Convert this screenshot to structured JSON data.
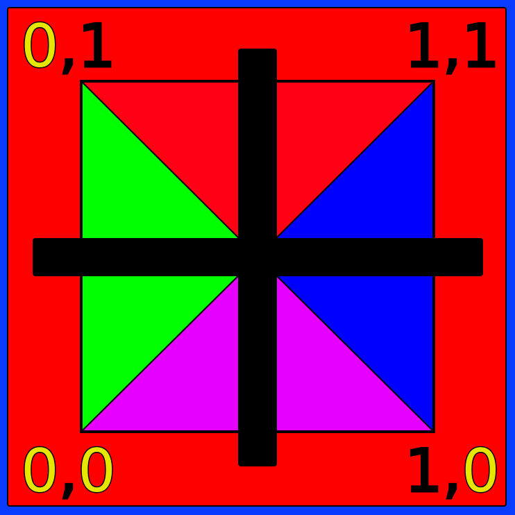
{
  "colors": {
    "outer_border": "#0a3cff",
    "background": "#ff0000",
    "triangle_top": "#ff0014",
    "triangle_left": "#00ff00",
    "triangle_right": "#0000ff",
    "triangle_bottom": "#e600ff",
    "cross": "#000000",
    "label_highlight": "#e6e600",
    "label_plain": "#000000"
  },
  "labels": {
    "top_left": {
      "first": "0",
      "sep": ",",
      "second": "1"
    },
    "top_right": {
      "first": "1",
      "sep": ",",
      "second": "1"
    },
    "bottom_left": {
      "first": "0",
      "sep": ",",
      "second": "0"
    },
    "bottom_right": {
      "first": "1",
      "sep": ",",
      "second": "0"
    }
  },
  "triangles": [
    {
      "name": "top",
      "color_key": "triangle_top"
    },
    {
      "name": "left",
      "color_key": "triangle_left"
    },
    {
      "name": "right",
      "color_key": "triangle_right"
    },
    {
      "name": "bottom",
      "color_key": "triangle_bottom"
    }
  ]
}
